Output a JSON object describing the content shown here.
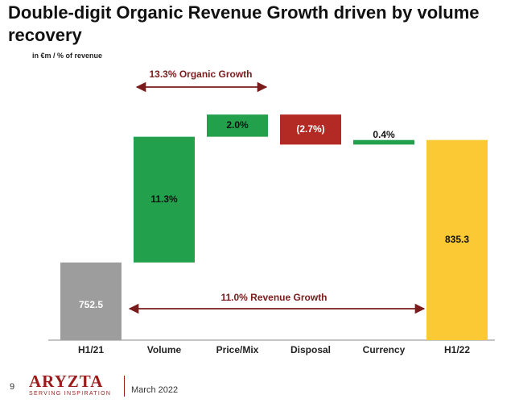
{
  "page": {
    "title": "Double-digit Organic Revenue Growth driven by volume recovery",
    "unit_note": "in €m / % of revenue",
    "page_number": "9",
    "date": "March 2022",
    "logo_text": "ARYZTA",
    "logo_tagline": "SERVING INSPIRATION"
  },
  "colors": {
    "start": "#9d9d9d",
    "up": "#22a04b",
    "down": "#b22a23",
    "end": "#fbc934",
    "arrow": "#7a1c1c"
  },
  "chart_data": {
    "type": "waterfall",
    "title": "Double-digit Organic Revenue Growth driven by volume recovery",
    "ylabel": "in €m / % of revenue",
    "categories": [
      "H1/21",
      "Volume",
      "Price/Mix",
      "Disposal",
      "Currency",
      "H1/22"
    ],
    "ylim": [
      700,
      870
    ],
    "bars": [
      {
        "category": "H1/21",
        "kind": "total",
        "start": 0,
        "end": 752.5,
        "label": "752.5"
      },
      {
        "category": "Volume",
        "kind": "increase",
        "start": 752.5,
        "end": 837.5,
        "label": "11.3%"
      },
      {
        "category": "Price/Mix",
        "kind": "increase",
        "start": 837.5,
        "end": 852.5,
        "label": "2.0%"
      },
      {
        "category": "Disposal",
        "kind": "decrease",
        "start": 852.5,
        "end": 832.2,
        "label": "(2.7%)"
      },
      {
        "category": "Currency",
        "kind": "increase",
        "start": 832.2,
        "end": 835.3,
        "label": "0.4%"
      },
      {
        "category": "H1/22",
        "kind": "total",
        "start": 0,
        "end": 835.3,
        "label": "835.3"
      }
    ],
    "annotations": [
      {
        "text": "13.3% Organic Growth",
        "from": "Volume",
        "to": "Price/Mix"
      },
      {
        "text": "11.0% Revenue Growth",
        "from": "H1/21",
        "to": "H1/22"
      }
    ]
  }
}
